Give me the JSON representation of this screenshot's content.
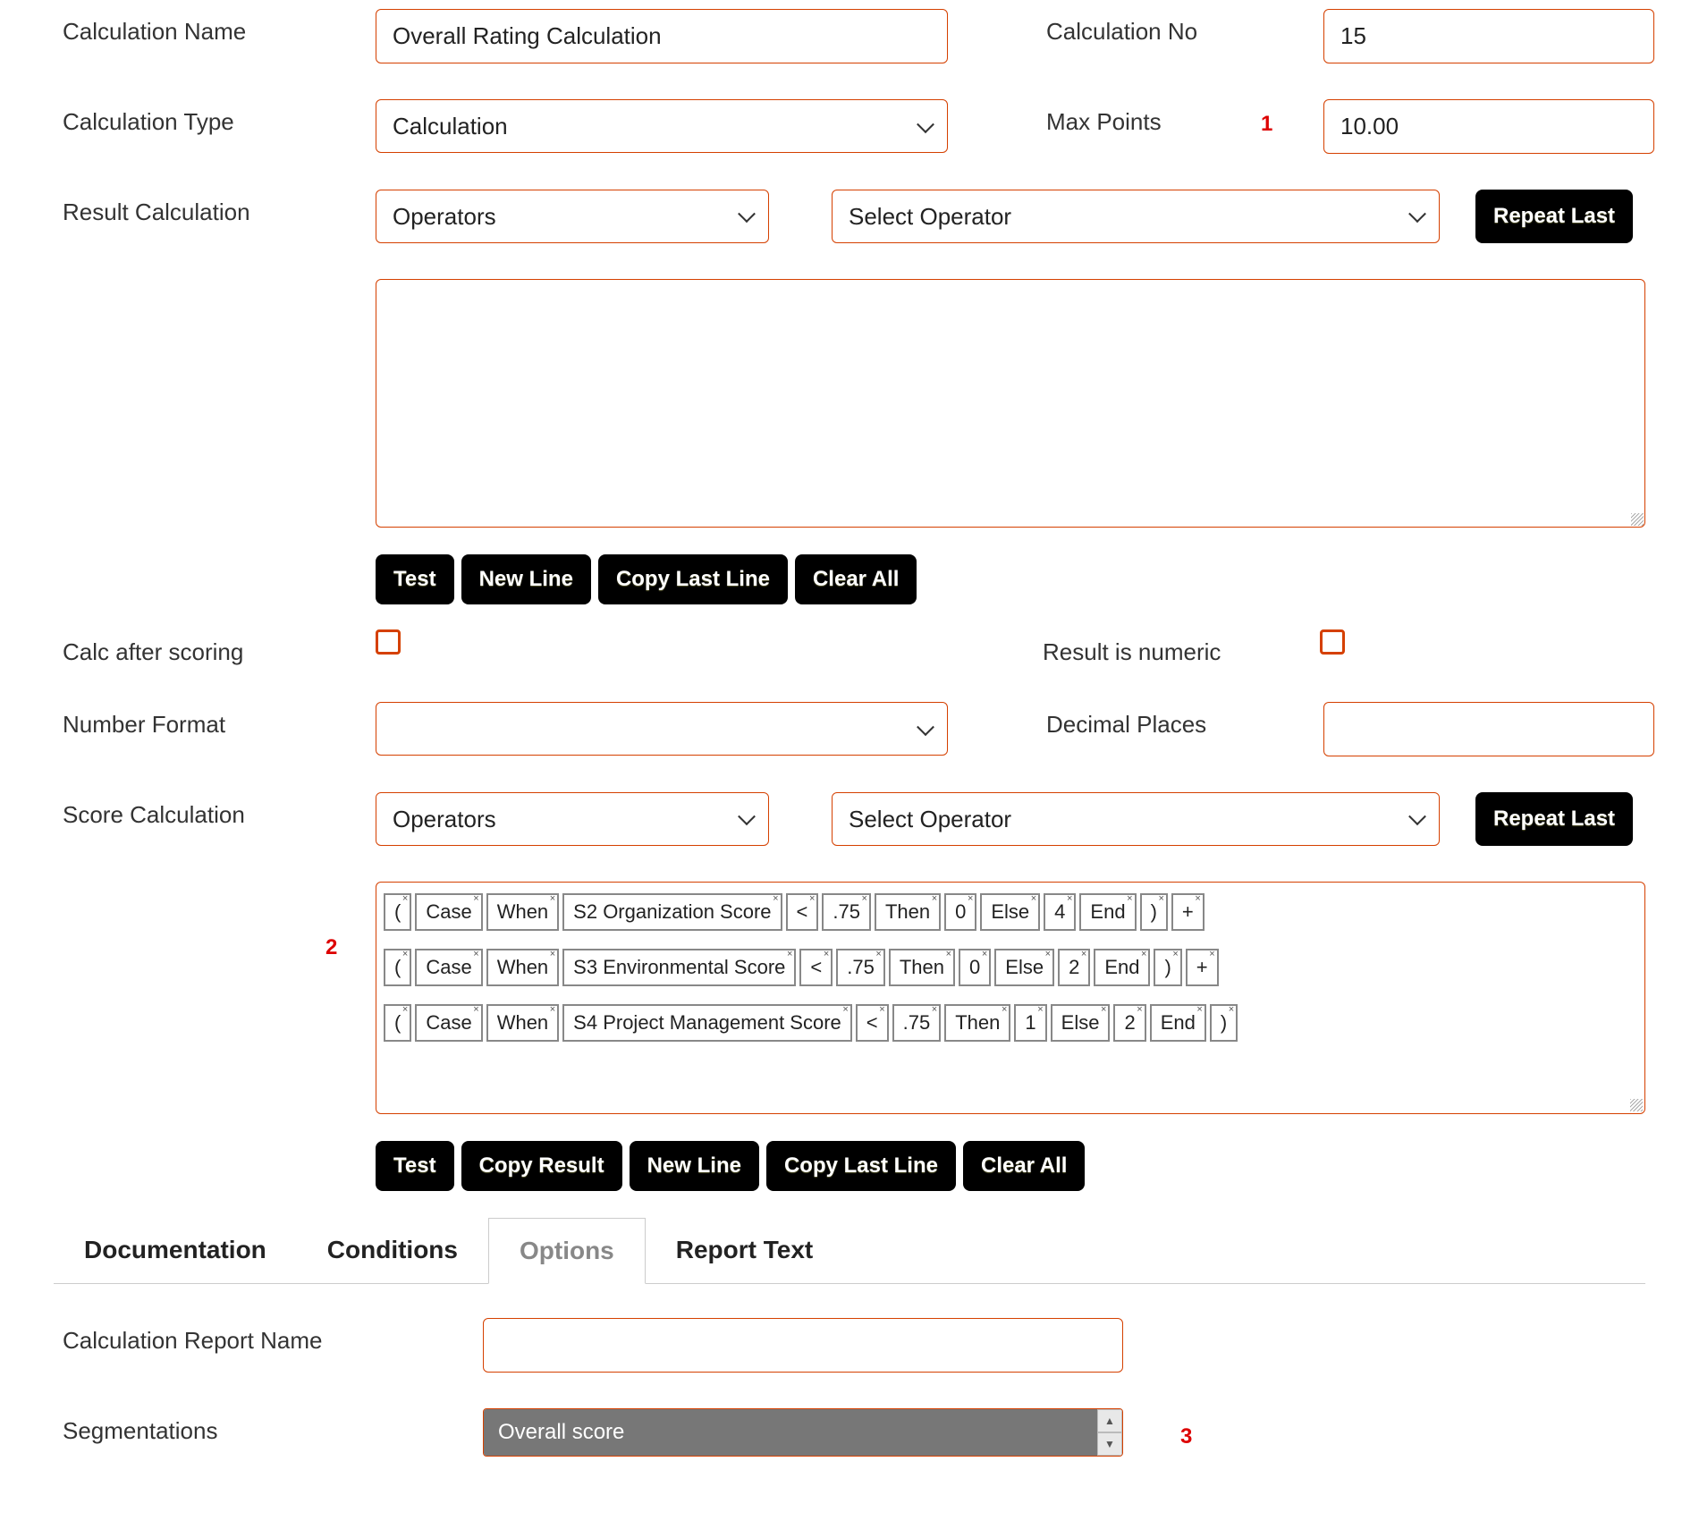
{
  "fields": {
    "calc_name": {
      "label": "Calculation Name",
      "value": "Overall Rating Calculation"
    },
    "calc_no": {
      "label": "Calculation No",
      "value": "15"
    },
    "calc_type": {
      "label": "Calculation Type",
      "value": "Calculation"
    },
    "max_points": {
      "label": "Max Points",
      "value": "10.00"
    },
    "result_calc": {
      "label": "Result Calculation"
    },
    "calc_after_scoring": {
      "label": "Calc after scoring"
    },
    "result_is_numeric": {
      "label": "Result is numeric"
    },
    "number_format": {
      "label": "Number Format",
      "value": ""
    },
    "decimal_places": {
      "label": "Decimal Places",
      "value": ""
    },
    "score_calc": {
      "label": "Score Calculation"
    },
    "calc_report_name": {
      "label": "Calculation Report Name",
      "value": ""
    },
    "segmentations": {
      "label": "Segmentations",
      "selected": "Overall score"
    }
  },
  "selectors": {
    "operators": "Operators",
    "select_operator": "Select Operator"
  },
  "buttons": {
    "repeat_last": "Repeat Last",
    "test": "Test",
    "new_line": "New Line",
    "copy_last_line": "Copy Last Line",
    "clear_all": "Clear All",
    "copy_result": "Copy Result"
  },
  "annotations": {
    "a1": "1",
    "a2": "2",
    "a3": "3"
  },
  "tabs": {
    "documentation": "Documentation",
    "conditions": "Conditions",
    "options": "Options",
    "report_text": "Report Text"
  },
  "score_tokens": [
    [
      "(",
      "Case",
      "When",
      "S2 Organization Score",
      "<",
      ".75",
      "Then",
      "0",
      "Else",
      "4",
      "End",
      ")",
      "+"
    ],
    [
      "(",
      "Case",
      "When",
      "S3 Environmental Score",
      "<",
      ".75",
      "Then",
      "0",
      "Else",
      "2",
      "End",
      ")",
      "+"
    ],
    [
      "(",
      "Case",
      "When",
      "S4 Project Management Score",
      "<",
      ".75",
      "Then",
      "1",
      "Else",
      "2",
      "End",
      ")"
    ]
  ],
  "colors": {
    "input_border": "#d54000",
    "button_bg": "#000000",
    "button_fg": "#ffffff",
    "annotation": "#dd0000",
    "token_border": "#888888",
    "tab_border": "#cccccc",
    "seg_bg": "#777777"
  },
  "sizes": {
    "calc_name_input_w": 640,
    "calc_no_input_w": 370,
    "calc_type_input_w": 640,
    "max_points_input_w": 370,
    "operators_select_w": 440,
    "select_operator_w": 680,
    "number_format_w": 640,
    "decimal_places_w": 370,
    "calc_report_name_w": 716,
    "textarea_h": 278
  }
}
